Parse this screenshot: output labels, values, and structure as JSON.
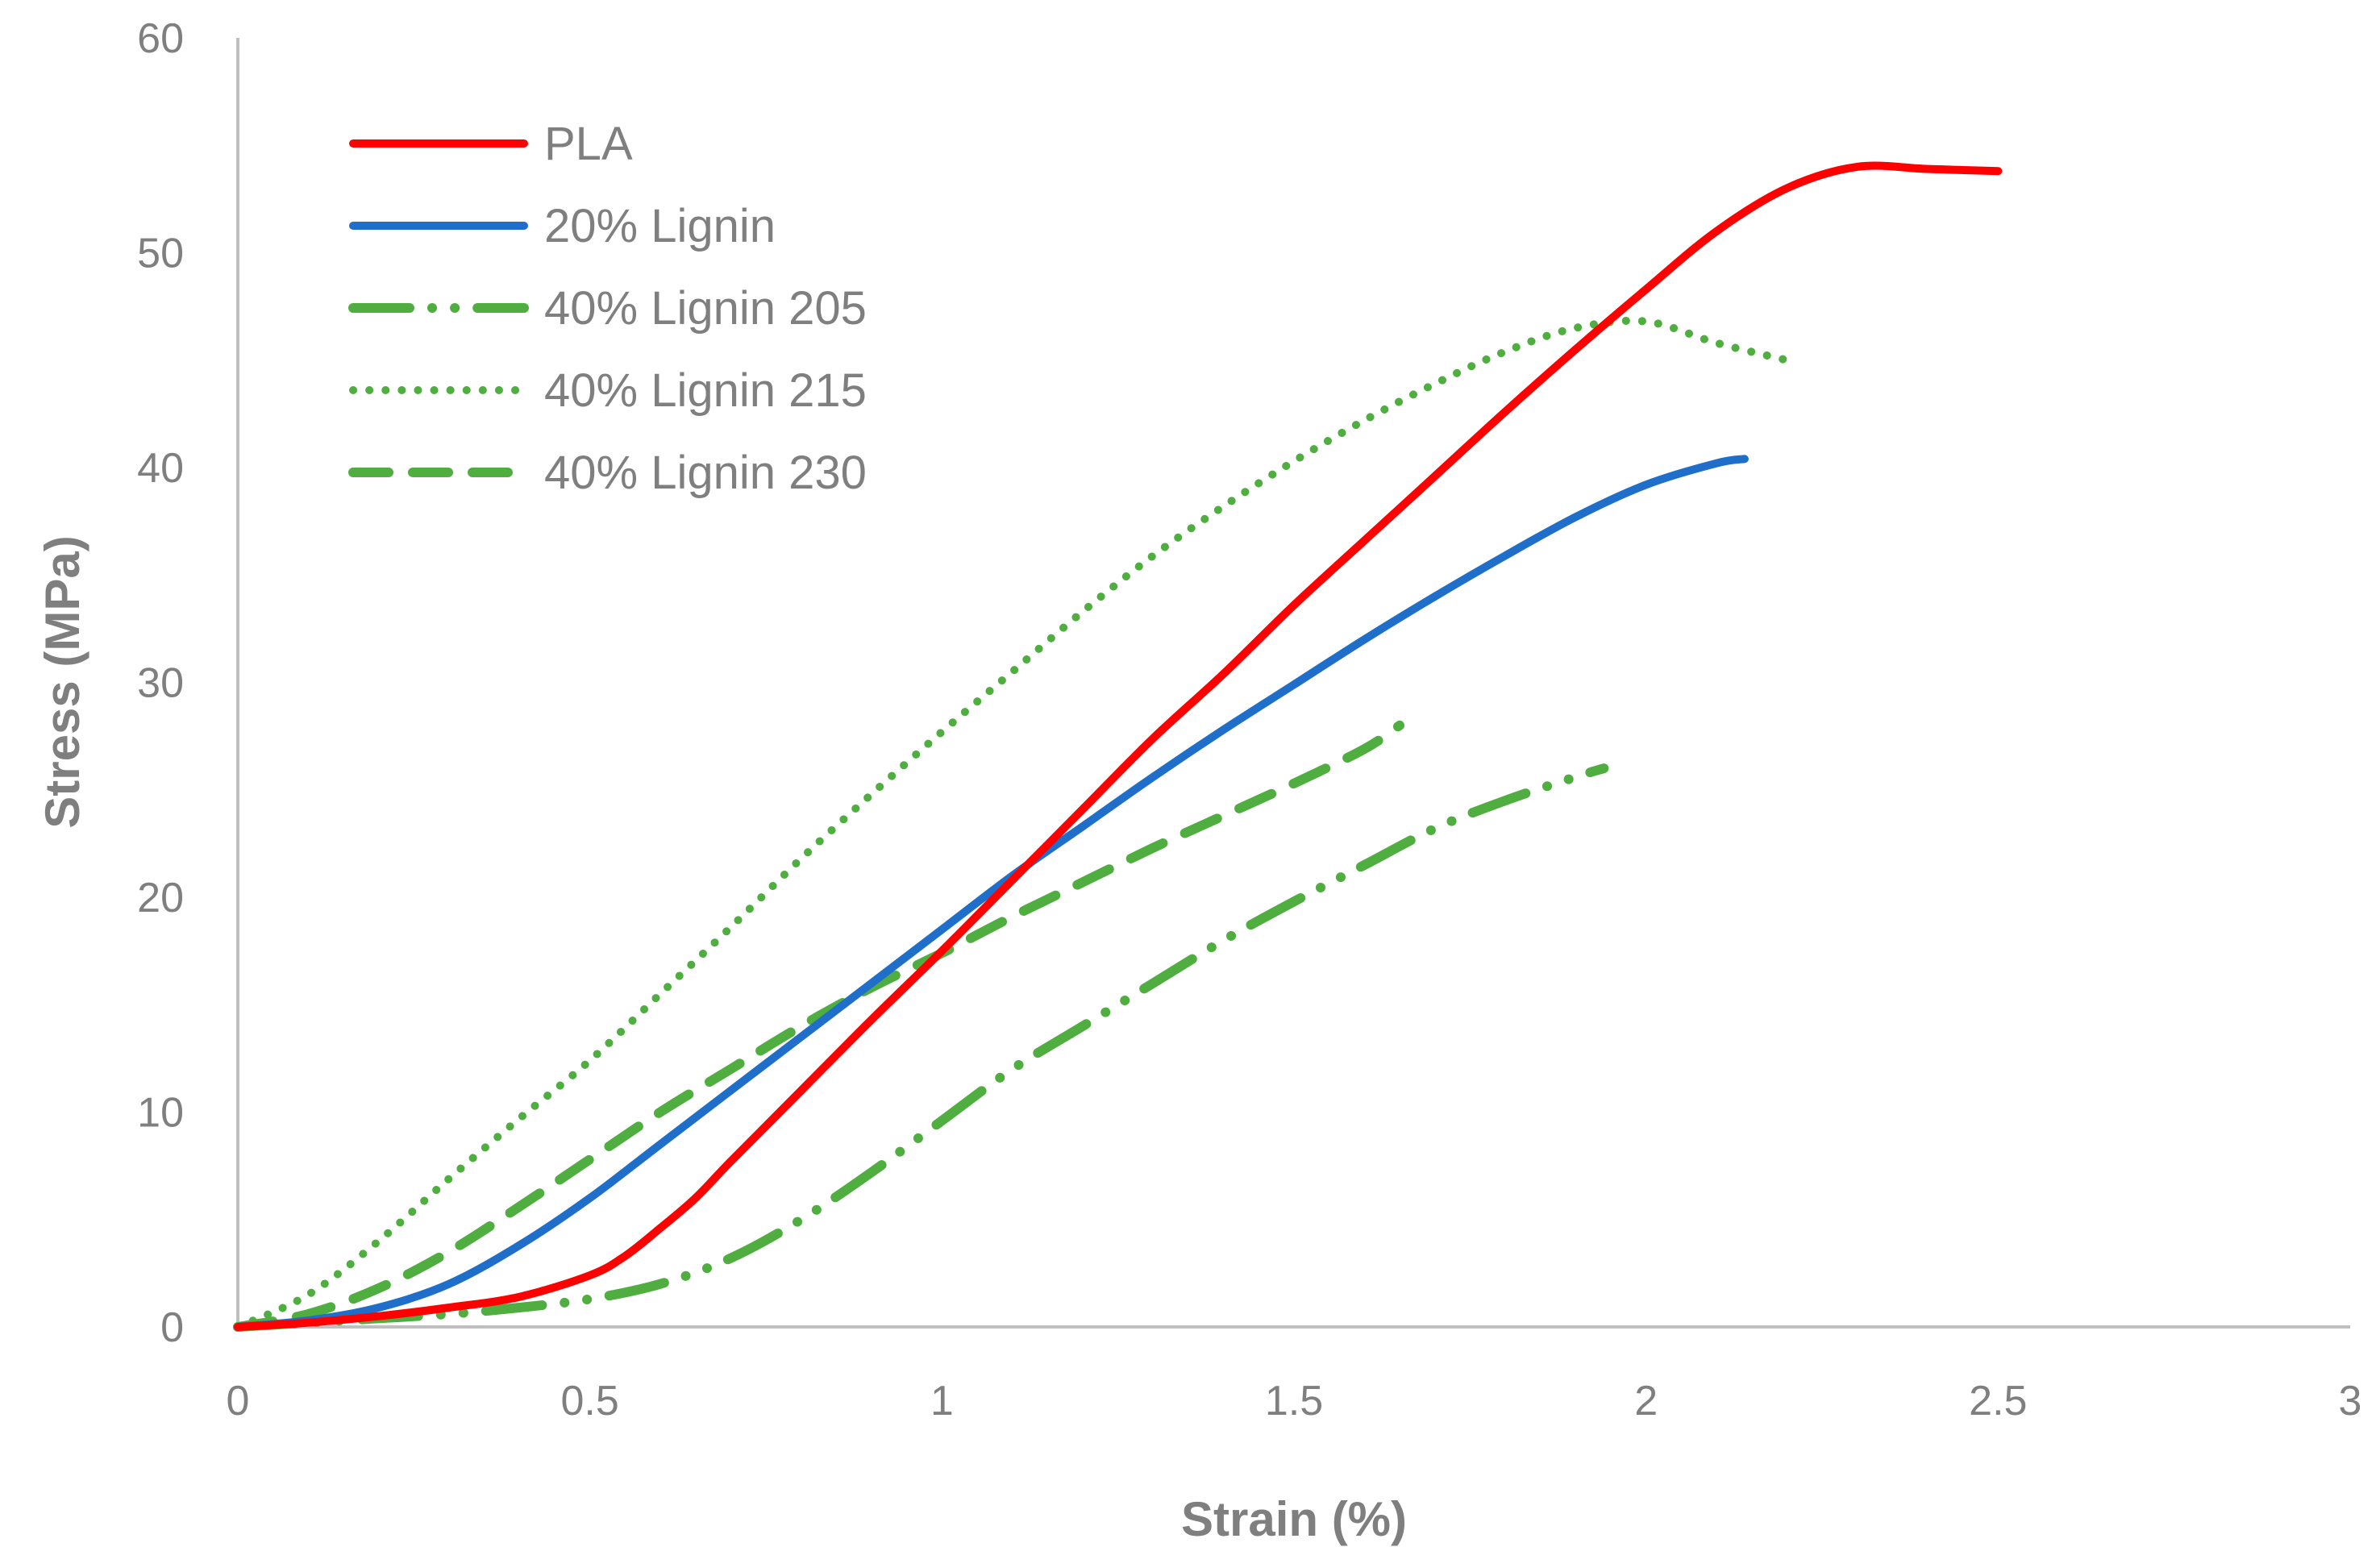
{
  "chart_data": {
    "type": "line",
    "title": "",
    "xlabel": "Strain (%)",
    "ylabel": "Stress (MPa)",
    "xlim": [
      0,
      3
    ],
    "ylim": [
      0,
      60
    ],
    "xticks": [
      0,
      0.5,
      1,
      1.5,
      2,
      2.5,
      3
    ],
    "yticks": [
      0,
      10,
      20,
      30,
      40,
      50,
      60
    ],
    "xtick_labels": [
      "0",
      "0.5",
      "1",
      "1.5",
      "2",
      "2.5",
      "3"
    ],
    "ytick_labels": [
      "0",
      "10",
      "20",
      "30",
      "40",
      "50",
      "60"
    ],
    "grid": false,
    "legend_position": "top-left",
    "series": [
      {
        "name": "PLA",
        "color": "#ff0000",
        "style": "solid",
        "x": [
          0,
          0.1,
          0.2,
          0.3,
          0.4,
          0.5,
          0.55,
          0.6,
          0.65,
          0.7,
          0.8,
          0.9,
          1.0,
          1.1,
          1.2,
          1.3,
          1.4,
          1.5,
          1.6,
          1.7,
          1.8,
          1.9,
          2.0,
          2.1,
          2.2,
          2.3,
          2.4,
          2.5
        ],
        "y": [
          0,
          0.2,
          0.5,
          0.9,
          1.4,
          2.4,
          3.3,
          4.6,
          6.0,
          7.7,
          11.0,
          14.3,
          17.5,
          20.8,
          24.1,
          27.4,
          30.4,
          33.6,
          36.6,
          39.6,
          42.6,
          45.5,
          48.3,
          51.0,
          53.0,
          54.0,
          53.9,
          53.8
        ]
      },
      {
        "name": "20% Lignin",
        "color": "#1f6fca",
        "style": "solid",
        "x": [
          0,
          0.1,
          0.2,
          0.3,
          0.4,
          0.5,
          0.6,
          0.7,
          0.8,
          0.9,
          1.0,
          1.1,
          1.2,
          1.3,
          1.4,
          1.5,
          1.6,
          1.7,
          1.8,
          1.9,
          2.0,
          2.1,
          2.14
        ],
        "y": [
          0,
          0.3,
          0.9,
          2.0,
          3.8,
          6.0,
          8.5,
          11.0,
          13.5,
          16.0,
          18.5,
          21.0,
          23.3,
          25.6,
          27.8,
          29.9,
          32.0,
          34.0,
          35.9,
          37.7,
          39.2,
          40.2,
          40.4
        ]
      },
      {
        "name": "40% Lignin 205",
        "color": "#4fae3f",
        "style": "dash-dot-dot",
        "x": [
          0,
          0.1,
          0.2,
          0.3,
          0.4,
          0.5,
          0.6,
          0.7,
          0.8,
          0.9,
          1.0,
          1.1,
          1.2,
          1.3,
          1.4,
          1.5,
          1.6,
          1.7,
          1.8,
          1.9,
          1.94
        ],
        "y": [
          0,
          0.2,
          0.4,
          0.6,
          0.9,
          1.3,
          2.0,
          3.2,
          5.0,
          7.2,
          9.6,
          12.0,
          14.0,
          16.0,
          18.0,
          19.8,
          21.5,
          23.2,
          24.5,
          25.6,
          26.0
        ]
      },
      {
        "name": "40% Lignin 215",
        "color": "#4fae3f",
        "style": "dotted",
        "x": [
          0,
          0.1,
          0.2,
          0.3,
          0.4,
          0.5,
          0.6,
          0.7,
          0.8,
          0.9,
          1.0,
          1.1,
          1.2,
          1.3,
          1.4,
          1.5,
          1.6,
          1.7,
          1.8,
          1.9,
          2.0,
          2.1,
          2.2
        ],
        "y": [
          0,
          1.5,
          4.0,
          6.9,
          9.7,
          12.4,
          15.5,
          18.6,
          21.8,
          24.8,
          27.7,
          30.5,
          33.3,
          35.9,
          38.2,
          40.3,
          42.2,
          43.9,
          45.4,
          46.5,
          46.8,
          45.8,
          45.0
        ]
      },
      {
        "name": "40% Lignin 230",
        "color": "#4fae3f",
        "style": "dashed",
        "x": [
          0,
          0.1,
          0.2,
          0.3,
          0.4,
          0.5,
          0.6,
          0.7,
          0.8,
          0.9,
          1.0,
          1.1,
          1.2,
          1.3,
          1.4,
          1.5,
          1.6,
          1.65
        ],
        "y": [
          0,
          0.6,
          1.8,
          3.5,
          5.6,
          7.8,
          10.0,
          12.0,
          14.0,
          15.8,
          17.4,
          19.1,
          20.7,
          22.3,
          23.8,
          25.3,
          26.9,
          28.0
        ]
      }
    ]
  }
}
